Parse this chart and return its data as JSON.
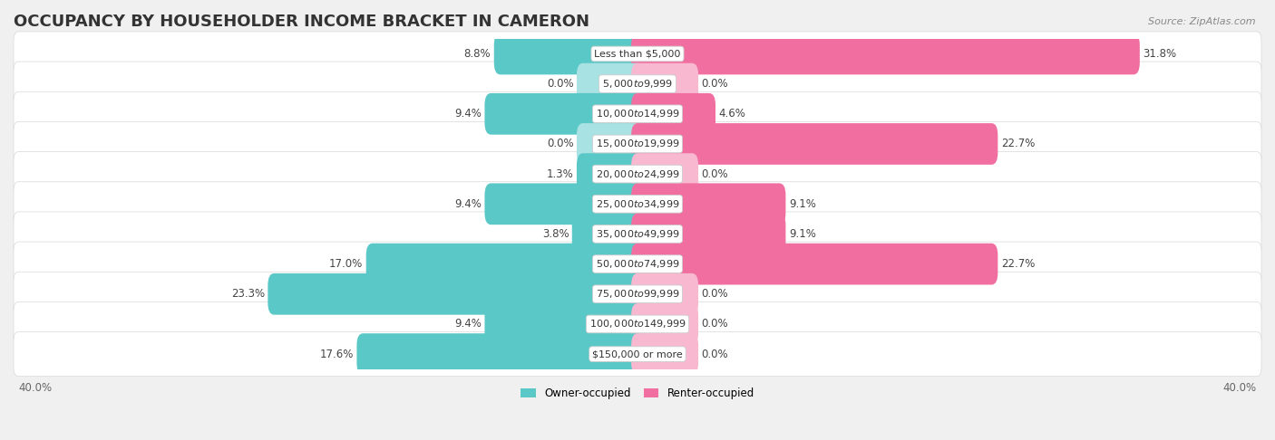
{
  "title": "OCCUPANCY BY HOUSEHOLDER INCOME BRACKET IN CAMERON",
  "source": "Source: ZipAtlas.com",
  "categories": [
    "Less than $5,000",
    "$5,000 to $9,999",
    "$10,000 to $14,999",
    "$15,000 to $19,999",
    "$20,000 to $24,999",
    "$25,000 to $34,999",
    "$35,000 to $49,999",
    "$50,000 to $74,999",
    "$75,000 to $99,999",
    "$100,000 to $149,999",
    "$150,000 or more"
  ],
  "owner_values": [
    8.8,
    0.0,
    9.4,
    0.0,
    1.3,
    9.4,
    3.8,
    17.0,
    23.3,
    9.4,
    17.6
  ],
  "renter_values": [
    31.8,
    0.0,
    4.6,
    22.7,
    0.0,
    9.1,
    9.1,
    22.7,
    0.0,
    0.0,
    0.0
  ],
  "owner_color": "#5bc8c8",
  "owner_color_light": "#a8e2e2",
  "renter_color": "#f06fa0",
  "renter_color_light": "#f7b8d0",
  "background_color": "#f0f0f0",
  "bar_bg_color": "#ffffff",
  "axis_limit": 40.0,
  "legend_owner": "Owner-occupied",
  "legend_renter": "Renter-occupied",
  "axis_label_left": "40.0%",
  "axis_label_right": "40.0%",
  "bar_height": 0.58,
  "stub_size": 3.5,
  "label_fontsize": 8.5,
  "category_fontsize": 8.0,
  "title_fontsize": 13,
  "source_fontsize": 8
}
